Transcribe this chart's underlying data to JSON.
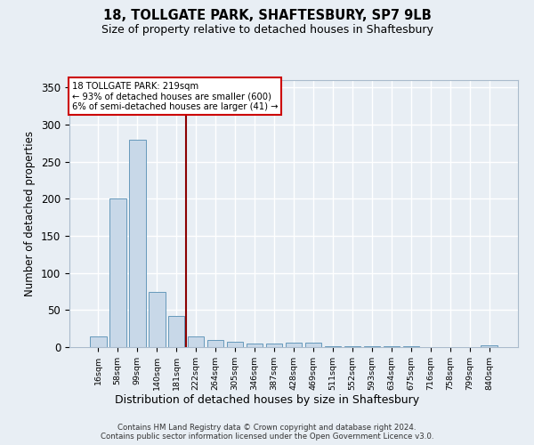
{
  "title1": "18, TOLLGATE PARK, SHAFTESBURY, SP7 9LB",
  "title2": "Size of property relative to detached houses in Shaftesbury",
  "xlabel": "Distribution of detached houses by size in Shaftesbury",
  "ylabel": "Number of detached properties",
  "categories": [
    "16sqm",
    "58sqm",
    "99sqm",
    "140sqm",
    "181sqm",
    "222sqm",
    "264sqm",
    "305sqm",
    "346sqm",
    "387sqm",
    "428sqm",
    "469sqm",
    "511sqm",
    "552sqm",
    "593sqm",
    "634sqm",
    "675sqm",
    "716sqm",
    "758sqm",
    "799sqm",
    "840sqm"
  ],
  "values": [
    15,
    200,
    280,
    75,
    42,
    15,
    10,
    7,
    5,
    5,
    6,
    6,
    1,
    1,
    1,
    1,
    1,
    0,
    0,
    0,
    3
  ],
  "bar_color": "#c8d8e8",
  "bar_edge_color": "#6699bb",
  "vline_color": "#8b0000",
  "annotation_text": "18 TOLLGATE PARK: 219sqm\n← 93% of detached houses are smaller (600)\n6% of semi-detached houses are larger (41) →",
  "annotation_box_color": "#ffffff",
  "annotation_box_edge": "#cc0000",
  "ylim": [
    0,
    360
  ],
  "yticks": [
    0,
    50,
    100,
    150,
    200,
    250,
    300,
    350
  ],
  "bg_color": "#e8eef4",
  "grid_color": "#ffffff",
  "footer": "Contains HM Land Registry data © Crown copyright and database right 2024.\nContains public sector information licensed under the Open Government Licence v3.0."
}
